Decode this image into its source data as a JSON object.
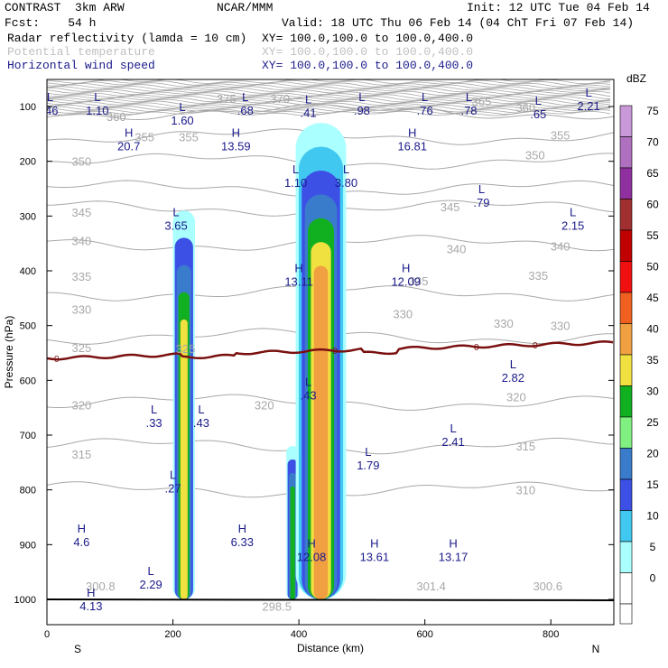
{
  "header": {
    "line1_left": "CONTRAST  3km ARW",
    "line1_mid": "NCAR/MMM",
    "line1_right": "Init: 12 UTC Tue 04 Feb 14",
    "line2_left": "Fcst:    54 h",
    "line2_right": "Valid: 18 UTC Thu 06 Feb 14 (04 ChT Fri 07 Feb 14)",
    "field1_name": "Radar reflectivity (lamda = 10 cm)",
    "field1_xy": "XY= 100.0,100.0 to 100.0,400.0",
    "field2_name": "Potential temperature",
    "field2_xy": "XY= 100.0,100.0 to 100.0,400.0",
    "field3_name": "Horizontal wind speed",
    "field3_xy": "XY= 100.0,100.0 to 100.0,400.0"
  },
  "colors": {
    "theta_contour": "#a8a8a8",
    "freezing_line": "#7a1010",
    "wind_labels": "#1a1a8a",
    "header_blue": "#1a1a8a"
  },
  "chart_data": {
    "type": "heatmap",
    "xlabel": "Distance (km)",
    "ylabel": "Pressure (hPa)",
    "xlim": [
      0,
      900
    ],
    "ylim": [
      1040,
      50
    ],
    "xticks": [
      0,
      200,
      400,
      600,
      800
    ],
    "yticks": [
      100,
      200,
      300,
      400,
      500,
      600,
      700,
      800,
      900,
      1000
    ],
    "x_end_labels": {
      "left": "S",
      "right": "N"
    },
    "colorbar": {
      "title": "dBZ",
      "levels": [
        0,
        5,
        10,
        15,
        20,
        25,
        30,
        35,
        40,
        45,
        50,
        55,
        60,
        65,
        70,
        75
      ],
      "colors": [
        "#ffffff",
        "#aaffff",
        "#40c8f0",
        "#3c50e6",
        "#3a7ccc",
        "#80f080",
        "#10b020",
        "#f0e040",
        "#f0a040",
        "#f06020",
        "#f01010",
        "#c00000",
        "#a03030",
        "#9030a0",
        "#b070c0",
        "#c898d8"
      ]
    },
    "reflectivity_cells": [
      {
        "x_range": [
          200,
          235
        ],
        "p_top": 290,
        "levels": [
          5,
          15,
          20,
          30,
          35
        ]
      },
      {
        "x_range": [
          380,
          400
        ],
        "p_top": 720,
        "levels": [
          5,
          15,
          20,
          30
        ]
      },
      {
        "x_range": [
          395,
          475
        ],
        "p_top": 130,
        "levels": [
          5,
          10,
          15,
          20,
          30,
          35,
          40
        ]
      }
    ],
    "theta_contours": [
      {
        "label": "360",
        "p": 110
      },
      {
        "label": "355",
        "p": 155
      },
      {
        "label": "350",
        "p": 200
      },
      {
        "label": "345",
        "p": 250
      },
      {
        "label": "340",
        "p": 285
      },
      {
        "label": "335",
        "p": 350
      },
      {
        "label": "330",
        "p": 440
      },
      {
        "label": "325",
        "p": 520
      },
      {
        "label": "320",
        "p": 640
      },
      {
        "label": "315",
        "p": 720
      },
      {
        "label": "310",
        "p": 800
      }
    ],
    "theta_labels": [
      {
        "text": "375",
        "x": 285,
        "p": 85
      },
      {
        "text": "370",
        "x": 370,
        "p": 85
      },
      {
        "text": "365",
        "x": 690,
        "p": 90
      },
      {
        "text": "360",
        "x": 110,
        "p": 118
      },
      {
        "text": "360",
        "x": 760,
        "p": 102
      },
      {
        "text": "355",
        "x": 155,
        "p": 155
      },
      {
        "text": "355",
        "x": 225,
        "p": 155
      },
      {
        "text": "355",
        "x": 815,
        "p": 152
      },
      {
        "text": "350",
        "x": 55,
        "p": 200
      },
      {
        "text": "350",
        "x": 775,
        "p": 188
      },
      {
        "text": "345",
        "x": 55,
        "p": 293
      },
      {
        "text": "345",
        "x": 640,
        "p": 283
      },
      {
        "text": "340",
        "x": 55,
        "p": 345
      },
      {
        "text": "340",
        "x": 650,
        "p": 360
      },
      {
        "text": "340",
        "x": 815,
        "p": 355
      },
      {
        "text": "335",
        "x": 55,
        "p": 410
      },
      {
        "text": "335",
        "x": 590,
        "p": 418
      },
      {
        "text": "335",
        "x": 780,
        "p": 408
      },
      {
        "text": "330",
        "x": 55,
        "p": 470
      },
      {
        "text": "330",
        "x": 565,
        "p": 478
      },
      {
        "text": "330",
        "x": 725,
        "p": 496
      },
      {
        "text": "330",
        "x": 815,
        "p": 500
      },
      {
        "text": "325",
        "x": 55,
        "p": 540
      },
      {
        "text": "325",
        "x": 220,
        "p": 542
      },
      {
        "text": "320",
        "x": 55,
        "p": 645
      },
      {
        "text": "320",
        "x": 345,
        "p": 645
      },
      {
        "text": "320",
        "x": 745,
        "p": 630
      },
      {
        "text": "315",
        "x": 55,
        "p": 735
      },
      {
        "text": "315",
        "x": 760,
        "p": 720
      },
      {
        "text": "310",
        "x": 760,
        "p": 800
      },
      {
        "text": "300.8",
        "x": 85,
        "p": 975
      },
      {
        "text": "301.4",
        "x": 610,
        "p": 975
      },
      {
        "text": "300.6",
        "x": 795,
        "p": 975
      },
      {
        "text": "298.5",
        "x": 365,
        "p": 1012
      }
    ],
    "freezing_level": {
      "label": "0",
      "p": 560
    },
    "wind_speed_extrema": [
      {
        "type": "L",
        "value": ".46",
        "x": 5,
        "p": 100
      },
      {
        "type": "L",
        "value": "1.10",
        "x": 80,
        "p": 100
      },
      {
        "type": "L",
        "value": "1.60",
        "x": 215,
        "p": 118
      },
      {
        "type": "L",
        "value": ".68",
        "x": 315,
        "p": 100
      },
      {
        "type": "L",
        "value": ".41",
        "x": 415,
        "p": 104
      },
      {
        "type": "L",
        "value": ".98",
        "x": 500,
        "p": 100
      },
      {
        "type": "L",
        "value": ".76",
        "x": 600,
        "p": 100
      },
      {
        "type": "L",
        "value": ".78",
        "x": 670,
        "p": 100
      },
      {
        "type": "L",
        "value": ".65",
        "x": 780,
        "p": 107
      },
      {
        "type": "L",
        "value": "2.21",
        "x": 860,
        "p": 92
      },
      {
        "type": "H",
        "value": "20.7",
        "x": 130,
        "p": 165
      },
      {
        "type": "H",
        "value": "13.59",
        "x": 300,
        "p": 165
      },
      {
        "type": "H",
        "value": "16.81",
        "x": 580,
        "p": 165
      },
      {
        "type": "L",
        "value": "1.10",
        "x": 395,
        "p": 232
      },
      {
        "type": "L",
        "value": "3.80",
        "x": 475,
        "p": 232
      },
      {
        "type": "L",
        "value": ".79",
        "x": 690,
        "p": 268
      },
      {
        "type": "L",
        "value": "3.65",
        "x": 205,
        "p": 310
      },
      {
        "type": "L",
        "value": "2.15",
        "x": 835,
        "p": 310
      },
      {
        "type": "H",
        "value": "13.11",
        "x": 400,
        "p": 412
      },
      {
        "type": "H",
        "value": "12.09",
        "x": 570,
        "p": 412
      },
      {
        "type": "L",
        "value": "2.82",
        "x": 740,
        "p": 588
      },
      {
        "type": "L",
        "value": ".43",
        "x": 415,
        "p": 620
      },
      {
        "type": "L",
        "value": ".33",
        "x": 170,
        "p": 670
      },
      {
        "type": "L",
        "value": ".43",
        "x": 245,
        "p": 670
      },
      {
        "type": "L",
        "value": "2.41",
        "x": 645,
        "p": 705
      },
      {
        "type": "L",
        "value": "1.79",
        "x": 510,
        "p": 748
      },
      {
        "type": "L",
        "value": ".27",
        "x": 200,
        "p": 790
      },
      {
        "type": "H",
        "value": "4.6",
        "x": 55,
        "p": 888
      },
      {
        "type": "H",
        "value": "6.33",
        "x": 310,
        "p": 888
      },
      {
        "type": "H",
        "value": "12.08",
        "x": 420,
        "p": 915
      },
      {
        "type": "H",
        "value": "13.61",
        "x": 520,
        "p": 915
      },
      {
        "type": "H",
        "value": "13.17",
        "x": 645,
        "p": 915
      },
      {
        "type": "L",
        "value": "2.29",
        "x": 165,
        "p": 965
      },
      {
        "type": "H",
        "value": "4.13",
        "x": 70,
        "p": 1005
      }
    ]
  }
}
